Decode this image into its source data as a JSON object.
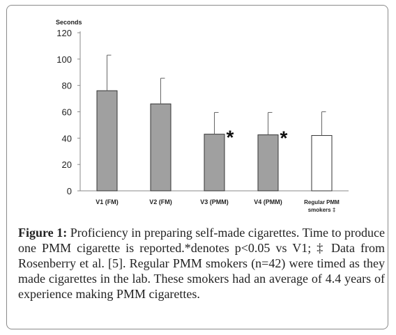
{
  "chart_data": {
    "type": "bar",
    "ylabel": "Seconds",
    "ylim": [
      0,
      120
    ],
    "yticks": [
      0,
      20,
      40,
      60,
      80,
      100,
      120
    ],
    "categories": [
      "V1 (FM)",
      "V2 (FM)",
      "V3 (PMM)",
      "V4 (PMM)",
      "Regular PMM smokers ‡"
    ],
    "category_lines": [
      [
        "V1 (FM)"
      ],
      [
        "V2 (FM)"
      ],
      [
        "V3 (PMM)"
      ],
      [
        "V4 (PMM)"
      ],
      [
        "Regular PMM",
        "smokers ‡"
      ]
    ],
    "values": [
      76,
      66,
      43,
      42.5,
      42
    ],
    "errors": [
      27,
      19.5,
      16.5,
      17,
      18
    ],
    "fills": [
      "#a0a0a0",
      "#a0a0a0",
      "#a0a0a0",
      "#a0a0a0",
      "#ffffff"
    ],
    "significance": [
      "",
      "",
      "*",
      "*",
      ""
    ],
    "grid": false,
    "legend": "none"
  },
  "caption": {
    "label": "Figure 1:",
    "text": "Proficiency in preparing self-made cigarettes. Time to produce one PMM cigarette is reported.*denotes p<0.05 vs V1; ‡ Data from Rosenberry et al. [5]. Regular PMM smokers (n=42) were timed as they made cigarettes in the lab. These smokers had an average of 4.4 years of experience making PMM cigarettes."
  }
}
